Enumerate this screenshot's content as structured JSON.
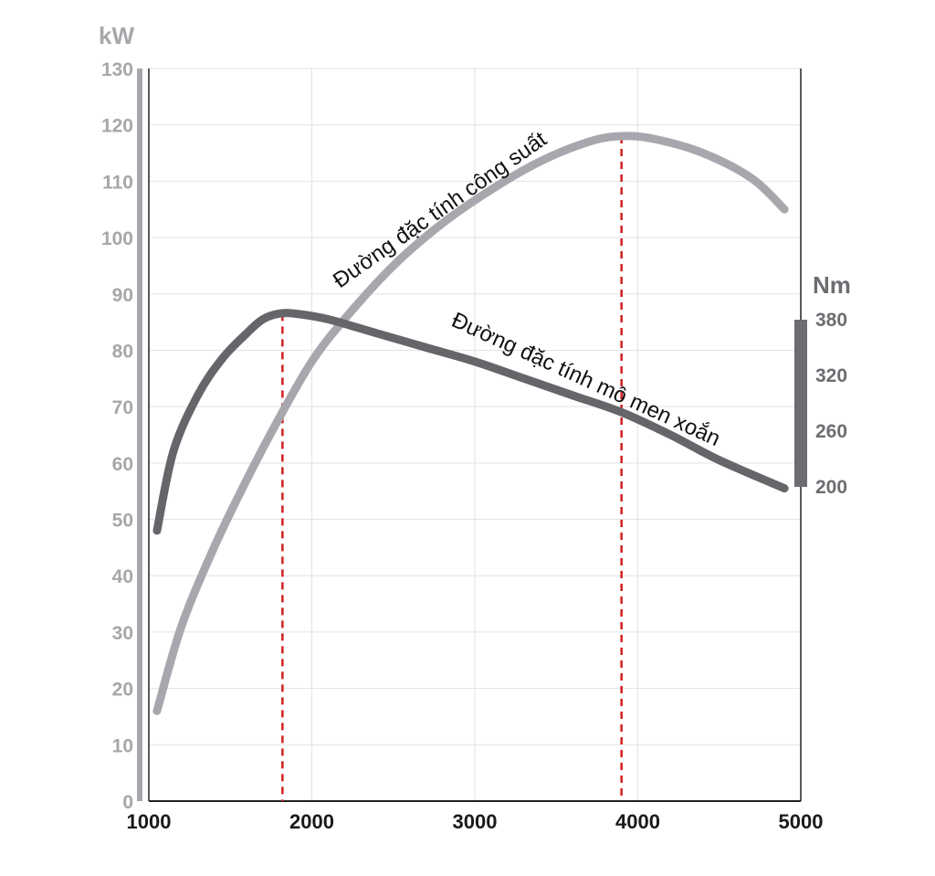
{
  "chart_data": {
    "type": "line",
    "x_ticks": [
      "1000",
      "2000",
      "3000",
      "4000",
      "5000"
    ],
    "xlim": [
      1000,
      5000
    ],
    "y_left": {
      "unit": "kW",
      "ylim": [
        0,
        130
      ],
      "ticks": [
        "130",
        "120",
        "110",
        "100",
        "90",
        "80",
        "70",
        "60",
        "50",
        "40",
        "30",
        "20",
        "10",
        "0"
      ]
    },
    "y_right": {
      "unit": "Nm",
      "ticks": [
        "380",
        "320",
        "260",
        "200"
      ]
    },
    "grid": true,
    "series": [
      {
        "name": "Đường đặc tính công suất",
        "color": "#a7a7ae",
        "x": [
          1050,
          1200,
          1400,
          1600,
          1800,
          2000,
          2200,
          2500,
          2800,
          3100,
          3400,
          3700,
          3900,
          4100,
          4400,
          4700,
          4900
        ],
        "y": [
          16,
          31,
          45,
          57,
          68,
          78,
          85.5,
          95,
          102.5,
          108.5,
          113.5,
          117,
          118,
          117.5,
          115,
          110.5,
          105
        ]
      },
      {
        "name": "Đường đặc tính mô men xoắn",
        "color": "#64666a",
        "x": [
          1050,
          1150,
          1300,
          1450,
          1600,
          1700,
          1800,
          1900,
          2100,
          2400,
          2700,
          3000,
          3300,
          3600,
          3900,
          4200,
          4500,
          4900
        ],
        "y": [
          48,
          62,
          72,
          78.5,
          83,
          85.5,
          86.5,
          86.5,
          85.5,
          83,
          80.5,
          78,
          75,
          72,
          69,
          65,
          60.5,
          55.5
        ]
      }
    ],
    "reference_lines": [
      {
        "x": 1820,
        "y": 86.5
      },
      {
        "x": 3900,
        "y": 118
      }
    ]
  }
}
